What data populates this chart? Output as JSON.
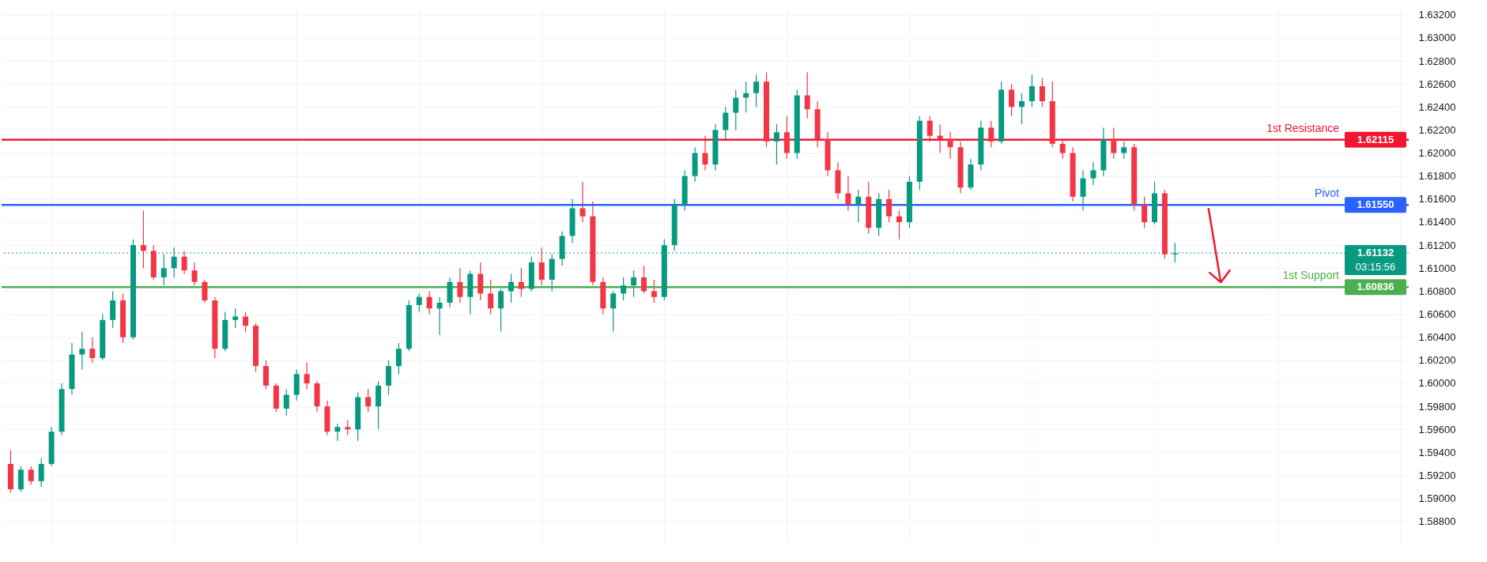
{
  "chart_data": {
    "type": "candlestick",
    "categories": [
      null,
      null,
      null,
      null,
      null,
      null,
      null,
      null,
      null,
      null,
      null,
      null,
      null,
      null,
      null,
      null,
      null,
      null,
      null,
      null,
      null,
      null,
      null,
      null,
      null,
      null,
      null,
      null,
      null,
      null,
      null,
      null,
      null,
      null,
      null,
      null,
      null,
      null,
      null,
      null,
      null,
      null,
      null,
      null,
      null,
      null,
      null,
      null,
      null,
      null,
      null,
      null,
      null,
      null,
      null,
      null,
      null,
      null,
      null,
      null,
      null,
      null,
      null,
      null,
      null,
      null,
      null,
      null,
      null,
      null,
      null,
      null,
      null,
      null,
      null,
      null,
      null,
      null,
      null,
      null,
      null,
      null,
      null,
      null,
      null,
      null,
      null,
      null,
      null,
      null,
      null,
      null,
      null,
      null,
      null,
      null,
      null,
      null,
      null,
      null,
      null,
      null,
      null,
      null,
      null,
      null,
      null,
      null,
      null,
      null,
      null,
      null,
      null,
      null,
      null,
      null,
      null,
      null,
      null,
      null,
      null,
      null,
      null,
      null,
      null,
      null,
      null,
      null,
      null,
      null,
      null,
      null,
      null,
      null,
      null,
      null,
      null
    ],
    "ohlc": [
      [
        1.593,
        1.5942,
        1.5905,
        1.5908
      ],
      [
        1.5908,
        1.5928,
        1.5906,
        1.5925
      ],
      [
        1.5925,
        1.5928,
        1.5912,
        1.5915
      ],
      [
        1.5915,
        1.5935,
        1.591,
        1.593
      ],
      [
        1.593,
        1.5962,
        1.5928,
        1.5958
      ],
      [
        1.5958,
        1.6,
        1.5955,
        1.5995
      ],
      [
        1.5995,
        1.6035,
        1.599,
        1.6025
      ],
      [
        1.6025,
        1.6045,
        1.6012,
        1.603
      ],
      [
        1.603,
        1.604,
        1.6018,
        1.6022
      ],
      [
        1.6022,
        1.606,
        1.602,
        1.6055
      ],
      [
        1.6055,
        1.608,
        1.6048,
        1.6072
      ],
      [
        1.6072,
        1.6078,
        1.6035,
        1.604
      ],
      [
        1.604,
        1.6125,
        1.6038,
        1.612
      ],
      [
        1.612,
        1.615,
        1.61,
        1.6115
      ],
      [
        1.6115,
        1.612,
        1.609,
        1.6092
      ],
      [
        1.6092,
        1.6112,
        1.6085,
        1.61
      ],
      [
        1.61,
        1.6118,
        1.6092,
        1.611
      ],
      [
        1.611,
        1.6115,
        1.6095,
        1.6098
      ],
      [
        1.6098,
        1.6105,
        1.6085,
        1.6088
      ],
      [
        1.6088,
        1.609,
        1.607,
        1.6072
      ],
      [
        1.6072,
        1.6075,
        1.6022,
        1.603
      ],
      [
        1.603,
        1.6062,
        1.6028,
        1.6055
      ],
      [
        1.6055,
        1.6065,
        1.6048,
        1.6058
      ],
      [
        1.6058,
        1.6062,
        1.6045,
        1.605
      ],
      [
        1.605,
        1.6052,
        1.601,
        1.6015
      ],
      [
        1.6015,
        1.602,
        1.5995,
        1.5998
      ],
      [
        1.5998,
        1.6,
        1.5975,
        1.5978
      ],
      [
        1.5978,
        1.5995,
        1.5972,
        1.599
      ],
      [
        1.599,
        1.6012,
        1.5985,
        1.6008
      ],
      [
        1.6008,
        1.6018,
        1.5995,
        1.6
      ],
      [
        1.6,
        1.6002,
        1.5975,
        1.598
      ],
      [
        1.598,
        1.5985,
        1.5955,
        1.5958
      ],
      [
        1.5958,
        1.5965,
        1.595,
        1.5962
      ],
      [
        1.5962,
        1.5968,
        1.5955,
        1.596
      ],
      [
        1.596,
        1.5992,
        1.595,
        1.5988
      ],
      [
        1.5988,
        1.5995,
        1.5975,
        1.598
      ],
      [
        1.598,
        1.6002,
        1.596,
        1.5998
      ],
      [
        1.5998,
        1.602,
        1.599,
        1.6015
      ],
      [
        1.6015,
        1.6035,
        1.6008,
        1.603
      ],
      [
        1.603,
        1.6072,
        1.6028,
        1.6068
      ],
      [
        1.6068,
        1.6078,
        1.6062,
        1.6075
      ],
      [
        1.6075,
        1.608,
        1.606,
        1.6065
      ],
      [
        1.6065,
        1.6075,
        1.6042,
        1.607
      ],
      [
        1.607,
        1.6092,
        1.6066,
        1.6088
      ],
      [
        1.6088,
        1.61,
        1.607,
        1.6075
      ],
      [
        1.6075,
        1.6098,
        1.606,
        1.6095
      ],
      [
        1.6095,
        1.6105,
        1.6072,
        1.6078
      ],
      [
        1.6078,
        1.609,
        1.606,
        1.6065
      ],
      [
        1.6065,
        1.6082,
        1.6045,
        1.608
      ],
      [
        1.608,
        1.6095,
        1.607,
        1.6088
      ],
      [
        1.6088,
        1.61,
        1.6075,
        1.6082
      ],
      [
        1.6082,
        1.611,
        1.608,
        1.6105
      ],
      [
        1.6105,
        1.6118,
        1.6085,
        1.609
      ],
      [
        1.609,
        1.6112,
        1.608,
        1.6108
      ],
      [
        1.6108,
        1.6132,
        1.6102,
        1.6128
      ],
      [
        1.6128,
        1.616,
        1.6122,
        1.6152
      ],
      [
        1.6152,
        1.6175,
        1.614,
        1.6145
      ],
      [
        1.6145,
        1.6158,
        1.6085,
        1.6088
      ],
      [
        1.6088,
        1.6092,
        1.606,
        1.6065
      ],
      [
        1.6065,
        1.608,
        1.6045,
        1.6078
      ],
      [
        1.6078,
        1.6092,
        1.6072,
        1.6085
      ],
      [
        1.6085,
        1.6098,
        1.6075,
        1.6092
      ],
      [
        1.6092,
        1.6102,
        1.6078,
        1.608
      ],
      [
        1.608,
        1.609,
        1.607,
        1.6075
      ],
      [
        1.6075,
        1.6125,
        1.6072,
        1.612
      ],
      [
        1.612,
        1.616,
        1.6115,
        1.6155
      ],
      [
        1.6155,
        1.6185,
        1.615,
        1.618
      ],
      [
        1.618,
        1.6205,
        1.6175,
        1.62
      ],
      [
        1.62,
        1.6215,
        1.6185,
        1.619
      ],
      [
        1.619,
        1.6225,
        1.6185,
        1.622
      ],
      [
        1.622,
        1.624,
        1.6212,
        1.6235
      ],
      [
        1.6235,
        1.6255,
        1.622,
        1.6248
      ],
      [
        1.6248,
        1.6262,
        1.6235,
        1.6252
      ],
      [
        1.6252,
        1.6268,
        1.624,
        1.6262
      ],
      [
        1.6262,
        1.627,
        1.6205,
        1.621
      ],
      [
        1.621,
        1.6225,
        1.619,
        1.6218
      ],
      [
        1.6218,
        1.6232,
        1.6195,
        1.62
      ],
      [
        1.62,
        1.6255,
        1.6195,
        1.625
      ],
      [
        1.625,
        1.627,
        1.623,
        1.6238
      ],
      [
        1.6238,
        1.6245,
        1.6205,
        1.6212
      ],
      [
        1.6212,
        1.6218,
        1.618,
        1.6185
      ],
      [
        1.6185,
        1.6192,
        1.616,
        1.6165
      ],
      [
        1.6165,
        1.618,
        1.615,
        1.6155
      ],
      [
        1.6155,
        1.6168,
        1.614,
        1.6162
      ],
      [
        1.6162,
        1.6175,
        1.613,
        1.6135
      ],
      [
        1.6135,
        1.6165,
        1.6128,
        1.616
      ],
      [
        1.616,
        1.6168,
        1.614,
        1.6145
      ],
      [
        1.6145,
        1.615,
        1.6125,
        1.614
      ],
      [
        1.614,
        1.618,
        1.6135,
        1.6175
      ],
      [
        1.6175,
        1.6232,
        1.6168,
        1.6228
      ],
      [
        1.6228,
        1.6232,
        1.621,
        1.6215
      ],
      [
        1.6215,
        1.6225,
        1.62,
        1.6212
      ],
      [
        1.6212,
        1.6218,
        1.6195,
        1.6205
      ],
      [
        1.6205,
        1.621,
        1.6165,
        1.617
      ],
      [
        1.617,
        1.6195,
        1.6168,
        1.619
      ],
      [
        1.619,
        1.6228,
        1.6185,
        1.6222
      ],
      [
        1.6222,
        1.6228,
        1.6205,
        1.621
      ],
      [
        1.621,
        1.6262,
        1.6208,
        1.6255
      ],
      [
        1.6255,
        1.626,
        1.6232,
        1.624
      ],
      [
        1.624,
        1.6252,
        1.6225,
        1.6245
      ],
      [
        1.6245,
        1.6268,
        1.624,
        1.6258
      ],
      [
        1.6258,
        1.6265,
        1.624,
        1.6245
      ],
      [
        1.6245,
        1.6262,
        1.6205,
        1.6208
      ],
      [
        1.6208,
        1.6212,
        1.6195,
        1.62
      ],
      [
        1.62,
        1.6205,
        1.6158,
        1.6162
      ],
      [
        1.6162,
        1.6185,
        1.615,
        1.6178
      ],
      [
        1.6178,
        1.6192,
        1.6172,
        1.6185
      ],
      [
        1.6185,
        1.6222,
        1.618,
        1.6212
      ],
      [
        1.6212,
        1.6222,
        1.6195,
        1.62
      ],
      [
        1.62,
        1.621,
        1.6195,
        1.6205
      ],
      [
        1.6205,
        1.6208,
        1.615,
        1.6155
      ],
      [
        1.6155,
        1.6162,
        1.6135,
        1.614
      ],
      [
        1.614,
        1.6175,
        1.6138,
        1.6165
      ],
      [
        1.6165,
        1.6168,
        1.6108,
        1.6112
      ],
      [
        1.6112,
        1.6122,
        1.6105,
        1.6113
      ],
      null,
      null,
      null,
      null,
      null,
      null,
      null,
      null,
      null,
      null,
      null,
      null,
      null,
      null,
      null,
      null,
      null,
      null,
      null,
      null,
      null,
      null
    ],
    "colors": [
      "#f23645",
      "#089981",
      "#f23645",
      "#089981",
      "#089981",
      "#089981",
      "#089981",
      "#089981",
      "#f23645",
      "#089981",
      "#089981",
      "#f23645",
      "#089981",
      "#f23645",
      "#f23645",
      "#089981",
      "#089981",
      "#f23645",
      "#f23645",
      "#f23645",
      "#f23645",
      "#089981",
      "#089981",
      "#f23645",
      "#f23645",
      "#f23645",
      "#f23645",
      "#089981",
      "#089981",
      "#f23645",
      "#f23645",
      "#f23645",
      "#089981",
      "#f23645",
      "#089981",
      "#f23645",
      "#089981",
      "#089981",
      "#089981",
      "#089981",
      "#089981",
      "#f23645",
      "#089981",
      "#089981",
      "#f23645",
      "#089981",
      "#f23645",
      "#f23645",
      "#089981",
      "#089981",
      "#f23645",
      "#089981",
      "#f23645",
      "#089981",
      "#089981",
      "#089981",
      "#f23645",
      "#f23645",
      "#f23645",
      "#089981",
      "#089981",
      "#089981",
      "#f23645",
      "#f23645",
      "#089981",
      "#089981",
      "#089981",
      "#089981",
      "#f23645",
      "#089981",
      "#089981",
      "#089981",
      "#089981",
      "#089981",
      "#f23645",
      "#089981",
      "#f23645",
      "#089981",
      "#f23645",
      "#f23645",
      "#f23645",
      "#f23645",
      "#f23645",
      "#089981",
      "#f23645",
      "#089981",
      "#f23645",
      "#f23645",
      "#089981",
      "#089981",
      "#f23645",
      "#f23645",
      "#f23645",
      "#f23645",
      "#089981",
      "#089981",
      "#f23645",
      "#089981",
      "#f23645",
      "#089981",
      "#089981",
      "#f23645",
      "#f23645",
      "#f23645",
      "#f23645",
      "#089981",
      "#089981",
      "#089981",
      "#f23645",
      "#089981",
      "#f23645",
      "#f23645",
      "#089981",
      "#f23645",
      "#089981",
      null,
      null,
      null,
      null,
      null,
      null,
      null,
      null,
      null,
      null,
      null,
      null,
      null,
      null,
      null,
      null,
      null,
      null,
      null,
      null,
      null,
      null
    ],
    "ylim": [
      1.5862,
      1.6326
    ],
    "yticks": [
      {
        "value": 1.588,
        "label": "1.58800"
      },
      {
        "value": 1.59,
        "label": "1.59000"
      },
      {
        "value": 1.592,
        "label": "1.59200"
      },
      {
        "value": 1.594,
        "label": "1.59400"
      },
      {
        "value": 1.596,
        "label": "1.59600"
      },
      {
        "value": 1.598,
        "label": "1.59800"
      },
      {
        "value": 1.6,
        "label": "1.60000"
      },
      {
        "value": 1.602,
        "label": "1.60200"
      },
      {
        "value": 1.604,
        "label": "1.60400"
      },
      {
        "value": 1.606,
        "label": "1.60600"
      },
      {
        "value": 1.608,
        "label": "1.60800"
      },
      {
        "value": 1.61,
        "label": "1.61000"
      },
      {
        "value": 1.612,
        "label": "1.61200"
      },
      {
        "value": 1.614,
        "label": "1.61400"
      },
      {
        "value": 1.616,
        "label": "1.61600"
      },
      {
        "value": 1.618,
        "label": "1.61800"
      },
      {
        "value": 1.62,
        "label": "1.62000"
      },
      {
        "value": 1.622,
        "label": "1.62200"
      },
      {
        "value": 1.624,
        "label": "1.62400"
      },
      {
        "value": 1.626,
        "label": "1.62600"
      },
      {
        "value": 1.628,
        "label": "1.62800"
      },
      {
        "value": 1.63,
        "label": "1.63000"
      },
      {
        "value": 1.632,
        "label": "1.63200"
      }
    ],
    "grid": true,
    "ref_lines": [
      {
        "axis": "y",
        "value": 1.62115,
        "label": "1st Resistance",
        "color": "#f0162e",
        "line_style": "solid"
      },
      {
        "axis": "y",
        "value": 1.6155,
        "label": "Pivot",
        "color": "#2962ff",
        "line_style": "solid"
      },
      {
        "axis": "y",
        "value": 1.60836,
        "label": "1st Support",
        "color": "#4caf50",
        "line_style": "solid"
      },
      {
        "axis": "y",
        "value": 1.61132,
        "label": null,
        "color": "#089981",
        "line_style": "dotted"
      }
    ],
    "annotations": [
      "1.62115",
      "1.61550",
      "1.60836",
      "1.61132",
      "03:15:56"
    ]
  }
}
